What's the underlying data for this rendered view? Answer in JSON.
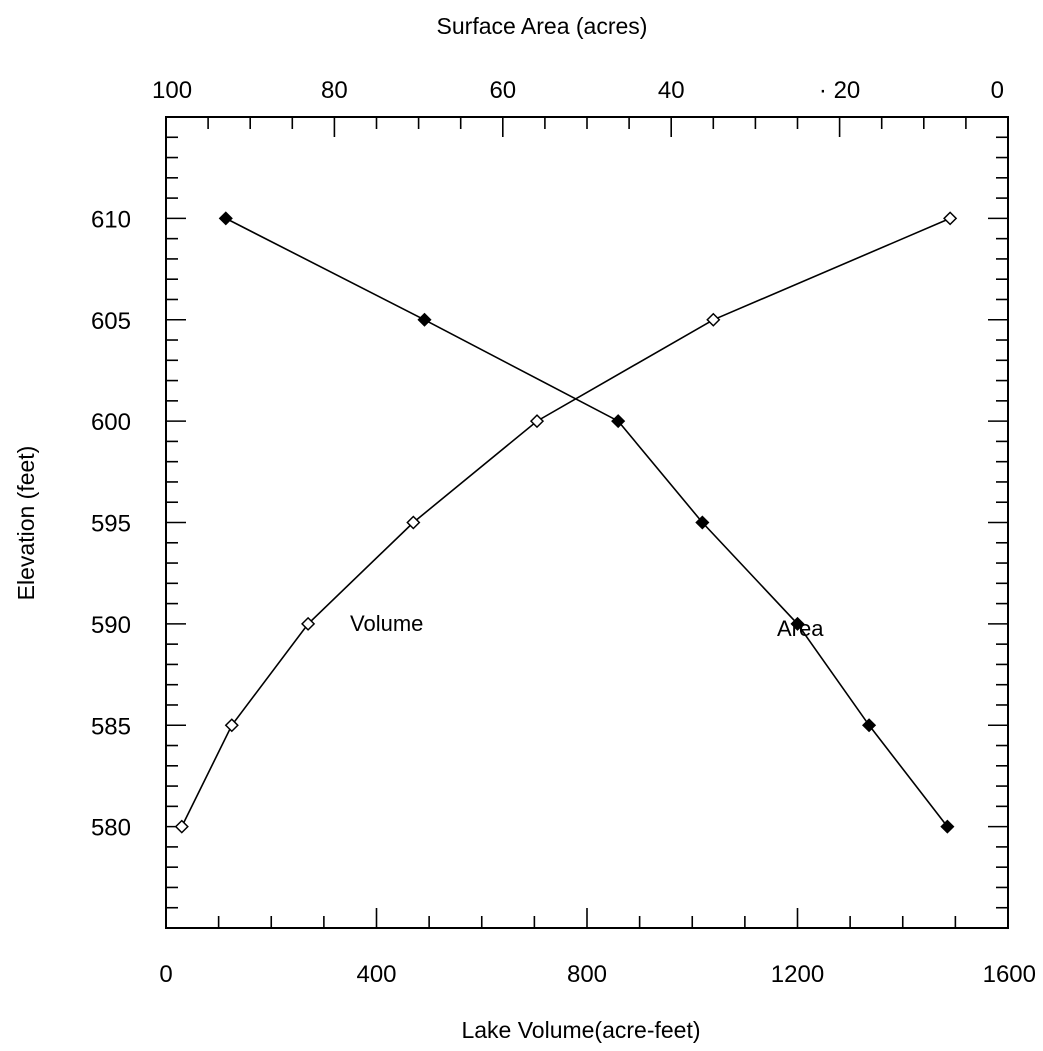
{
  "chart_data": {
    "type": "line",
    "title": "",
    "top_axis": {
      "label": "Surface Area (acres)",
      "range": [
        100,
        0
      ],
      "ticks": [
        100,
        80,
        60,
        40,
        20,
        0
      ],
      "tick_labels": [
        "100",
        "80",
        "60",
        "40",
        "· 20",
        "0"
      ]
    },
    "bottom_axis": {
      "label": "Lake Volume(acre-feet)",
      "range": [
        0,
        1600
      ],
      "ticks": [
        0,
        400,
        800,
        1200,
        1600
      ],
      "tick_labels": [
        "0",
        "400",
        "800",
        "1200",
        "1600"
      ]
    },
    "y_axis": {
      "label": "Elevation (feet)",
      "range": [
        575,
        615
      ],
      "ticks": [
        580,
        585,
        590,
        595,
        600,
        605,
        610
      ],
      "tick_labels": [
        "580",
        "585",
        "590",
        "595",
        "600",
        "605",
        "610"
      ]
    },
    "grid": false,
    "series": [
      {
        "name": "Volume",
        "axis": "bottom",
        "marker": "open-diamond",
        "x": [
          30,
          125,
          270,
          470,
          705,
          1040,
          1490
        ],
        "y": [
          580,
          585,
          590,
          595,
          600,
          605,
          610
        ]
      },
      {
        "name": "Area",
        "axis": "top",
        "marker": "filled-diamond",
        "x": [
          7.2,
          16.5,
          25.0,
          36.3,
          46.3,
          69.3,
          92.9
        ],
        "y": [
          580,
          585,
          590,
          595,
          600,
          605,
          610
        ]
      }
    ],
    "annotations": [
      {
        "text": "Volume",
        "x_volume": 350,
        "y": 590
      },
      {
        "text": "Area",
        "x_volume": 1170,
        "y": 589.6
      }
    ]
  }
}
